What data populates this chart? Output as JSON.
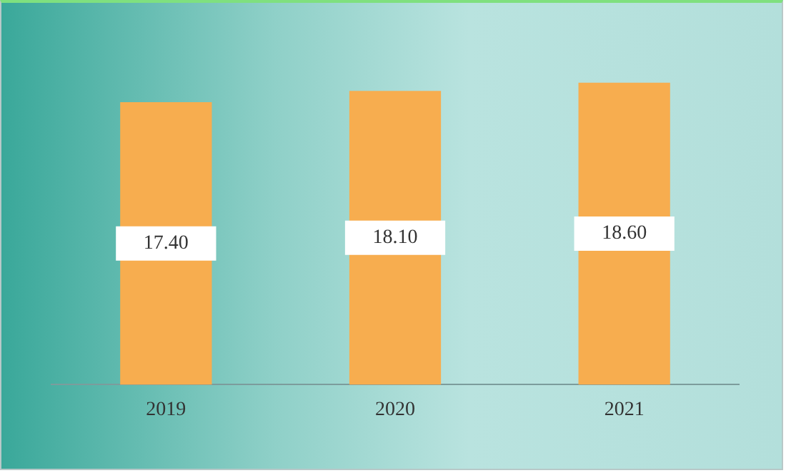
{
  "chart_data": {
    "type": "bar",
    "categories": [
      "2019",
      "2020",
      "2021"
    ],
    "values": [
      17.4,
      18.1,
      18.6
    ],
    "value_labels": [
      "17.40",
      "18.10",
      "18.60"
    ],
    "color": "#f7ad4f",
    "grid": false,
    "legend": false
  }
}
